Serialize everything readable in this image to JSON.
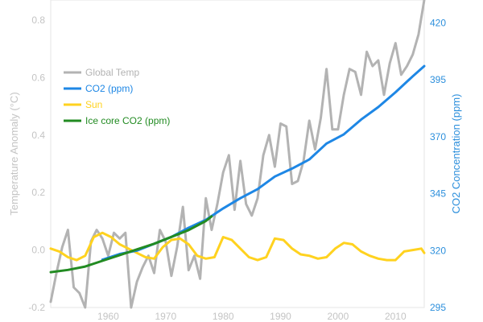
{
  "chart_data": {
    "type": "line",
    "xlim": [
      1950,
      2015
    ],
    "ylim_left": [
      -0.2,
      0.87
    ],
    "ylim_right": [
      295,
      430
    ],
    "x_ticks": [
      1960,
      1970,
      1980,
      1990,
      2000,
      2010
    ],
    "y_ticks_left": [
      -0.2,
      0.0,
      0.2,
      0.4,
      0.6,
      0.8
    ],
    "y_ticks_left_labels": [
      "-0.2",
      "0.0",
      "0.2",
      "0.4",
      "0.6",
      "0.8"
    ],
    "y_ticks_right": [
      295,
      320,
      345,
      370,
      395,
      420
    ],
    "ylabel_left": "Temperature Anomaly (°C)",
    "ylabel_right": "CO2 Concentration (ppm)",
    "grid": false,
    "legend_position": "upper-left",
    "legend": [
      {
        "name": "Global Temp",
        "color": "#b3b3b3"
      },
      {
        "name": "CO2 (ppm)",
        "color": "#1e87e5"
      },
      {
        "name": "Sun",
        "color": "#ffd21f"
      },
      {
        "name": "Ice core CO2 (ppm)",
        "color": "#228b22"
      }
    ],
    "series": [
      {
        "name": "Global Temp",
        "axis": "left",
        "color": "#b3b3b3",
        "x": [
          1950,
          1951,
          1952,
          1953,
          1954,
          1955,
          1956,
          1957,
          1958,
          1959,
          1960,
          1961,
          1962,
          1963,
          1964,
          1965,
          1966,
          1967,
          1968,
          1969,
          1970,
          1971,
          1972,
          1973,
          1974,
          1975,
          1976,
          1977,
          1978,
          1979,
          1980,
          1981,
          1982,
          1983,
          1984,
          1985,
          1986,
          1987,
          1988,
          1989,
          1990,
          1991,
          1992,
          1993,
          1994,
          1995,
          1996,
          1997,
          1998,
          1999,
          2000,
          2001,
          2002,
          2003,
          2004,
          2005,
          2006,
          2007,
          2008,
          2009,
          2010,
          2011,
          2012,
          2013,
          2014,
          2015
        ],
        "values": [
          -0.18,
          -0.08,
          0.01,
          0.07,
          -0.13,
          -0.15,
          -0.2,
          0.03,
          0.07,
          0.04,
          -0.02,
          0.06,
          0.04,
          0.06,
          -0.2,
          -0.11,
          -0.06,
          -0.02,
          -0.08,
          0.07,
          0.03,
          -0.09,
          0.01,
          0.15,
          -0.07,
          -0.02,
          -0.1,
          0.18,
          0.07,
          0.16,
          0.27,
          0.33,
          0.14,
          0.31,
          0.16,
          0.12,
          0.18,
          0.33,
          0.4,
          0.29,
          0.44,
          0.43,
          0.23,
          0.24,
          0.31,
          0.45,
          0.35,
          0.46,
          0.63,
          0.42,
          0.42,
          0.54,
          0.63,
          0.62,
          0.54,
          0.69,
          0.64,
          0.66,
          0.54,
          0.65,
          0.72,
          0.61,
          0.64,
          0.68,
          0.75,
          0.87
        ]
      },
      {
        "name": "CO2 (ppm)",
        "axis": "right",
        "color": "#1e87e5",
        "x": [
          1959,
          1962,
          1965,
          1968,
          1971,
          1974,
          1977,
          1980,
          1983,
          1986,
          1989,
          1992,
          1995,
          1998,
          2001,
          2004,
          2007,
          2010,
          2013,
          2015
        ],
        "values": [
          316,
          318.5,
          320,
          323,
          326,
          330,
          333.5,
          338.5,
          343,
          347,
          352.5,
          356,
          360,
          367,
          371,
          377.5,
          383,
          389.5,
          396.5,
          401
        ]
      },
      {
        "name": "Sun",
        "axis": "left",
        "color": "#ffd21f",
        "x": [
          1950,
          1951.5,
          1953,
          1954.5,
          1956,
          1957.5,
          1959,
          1960.5,
          1962,
          1963.5,
          1965,
          1966.5,
          1968,
          1969.5,
          1971,
          1972.5,
          1974,
          1975.5,
          1977,
          1978.5,
          1980,
          1981.5,
          1983,
          1984.5,
          1986,
          1987.5,
          1989,
          1990.5,
          1992,
          1993.5,
          1995,
          1996.5,
          1998,
          1999.5,
          2001,
          2002.5,
          2004,
          2005.5,
          2007,
          2008.5,
          2010,
          2011.5,
          2013,
          2014.5,
          2015
        ],
        "values": [
          0.005,
          -0.005,
          -0.025,
          -0.035,
          -0.02,
          0.045,
          0.06,
          0.045,
          0.02,
          0.005,
          -0.01,
          -0.025,
          -0.03,
          0.01,
          0.035,
          0.04,
          0.02,
          -0.02,
          -0.03,
          -0.025,
          0.045,
          0.035,
          0.005,
          -0.025,
          -0.035,
          -0.025,
          0.04,
          0.035,
          0.005,
          -0.015,
          -0.02,
          -0.03,
          -0.025,
          0.005,
          0.025,
          0.02,
          -0.005,
          -0.02,
          -0.03,
          -0.035,
          -0.035,
          -0.005,
          0.0,
          0.005,
          -0.01
        ]
      },
      {
        "name": "Ice core CO2 (ppm)",
        "axis": "right",
        "color": "#228b22",
        "x": [
          1950,
          1953,
          1956,
          1959,
          1962,
          1965,
          1968,
          1971,
          1974,
          1977,
          1978
        ],
        "values": [
          310.5,
          311.5,
          313,
          315.5,
          318,
          320.5,
          323,
          326,
          329,
          333,
          335
        ]
      }
    ]
  }
}
